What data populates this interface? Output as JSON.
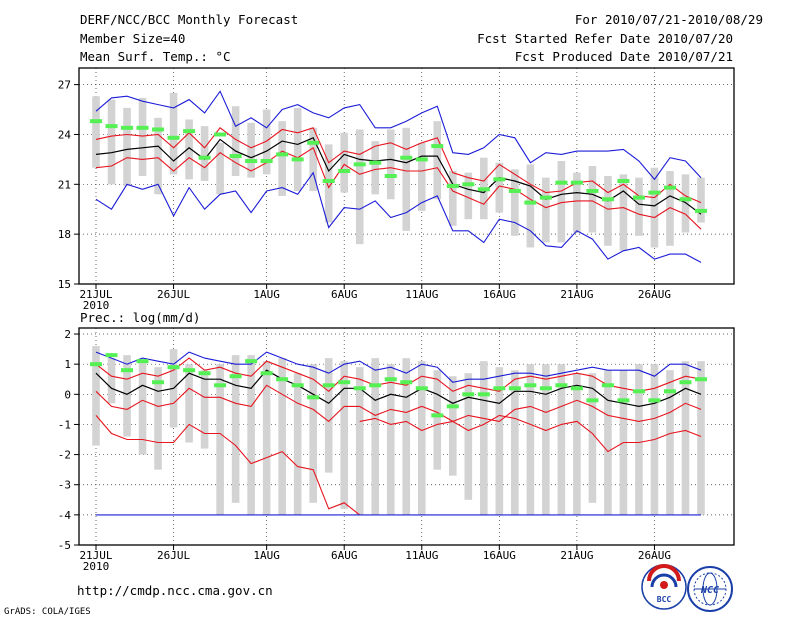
{
  "header": {
    "left_title": "DERF/NCC/BCC Monthly Forecast",
    "left_member": "Member Size=40",
    "left_variable": "Mean Surf. Temp.: °C",
    "right_range": "For 2010/07/21-2010/08/29",
    "right_started": "Fcst Started Refer Date 2010/07/20",
    "right_produced": "Fcst Produced Date 2010/07/21"
  },
  "footer": {
    "url": "http://cmdp.ncc.cma.gov.cn",
    "credit": "GrADS: COLA/IGES",
    "logo1_text": "BCC",
    "logo2_text": "NCC"
  },
  "colors": {
    "box": "#d3d3d3",
    "mean": "#000000",
    "spread": "#e8141e",
    "extreme": "#1c1cd8",
    "observed": "#54f054",
    "grid": "#333333"
  },
  "chart_data": [
    {
      "type": "line",
      "title": "",
      "ylabel": "",
      "xlabel": "",
      "ylim": [
        15,
        28
      ],
      "yticks": [
        15,
        18,
        21,
        24,
        27
      ],
      "xtick_labels": [
        "21JUL",
        "26JUL",
        "1AUG",
        "6AUG",
        "11AUG",
        "16AUG",
        "21AUG",
        "26AUG"
      ],
      "xtick_days": [
        0,
        5,
        11,
        16,
        21,
        26,
        31,
        36
      ],
      "year_label": "2010",
      "days": 40,
      "series": [
        {
          "name": "mean",
          "values": [
            22.8,
            22.9,
            23.1,
            23.2,
            23.3,
            22.4,
            23.2,
            22.5,
            23.7,
            23.0,
            22.6,
            23.0,
            23.6,
            23.4,
            23.8,
            21.8,
            22.8,
            22.5,
            22.4,
            22.5,
            22.3,
            22.7,
            22.7,
            21.0,
            20.7,
            20.5,
            21.4,
            21.2,
            20.9,
            20.1,
            20.4,
            20.5,
            20.4,
            20.0,
            20.6,
            19.8,
            19.7,
            20.3,
            19.9,
            19.2
          ]
        },
        {
          "name": "upper",
          "values": [
            23.7,
            23.9,
            24.0,
            23.9,
            24.0,
            23.2,
            24.1,
            23.2,
            24.4,
            23.7,
            23.2,
            23.6,
            24.3,
            24.1,
            24.4,
            22.3,
            23.0,
            22.8,
            23.3,
            23.5,
            23.1,
            23.5,
            23.8,
            21.7,
            21.4,
            21.2,
            22.2,
            21.6,
            21.0,
            20.5,
            20.6,
            21.1,
            21.2,
            20.5,
            21.0,
            20.3,
            20.2,
            21.0,
            20.3,
            19.9
          ]
        },
        {
          "name": "lower",
          "values": [
            22.0,
            22.1,
            22.6,
            22.5,
            22.6,
            21.8,
            22.6,
            22.0,
            22.9,
            22.3,
            21.8,
            22.3,
            23.0,
            22.6,
            23.2,
            20.8,
            22.2,
            21.6,
            21.9,
            22.0,
            21.8,
            21.8,
            22.0,
            20.6,
            20.2,
            19.8,
            20.9,
            20.7,
            20.1,
            19.6,
            19.9,
            20.0,
            20.0,
            19.5,
            19.6,
            19.2,
            19.0,
            19.6,
            19.2,
            18.3
          ]
        },
        {
          "name": "max",
          "values": [
            25.4,
            26.2,
            26.3,
            26.0,
            25.8,
            25.6,
            26.1,
            25.3,
            26.6,
            24.5,
            25.0,
            24.4,
            25.5,
            25.8,
            25.3,
            25.0,
            25.6,
            25.8,
            24.4,
            24.4,
            24.8,
            25.3,
            25.7,
            22.9,
            22.8,
            23.2,
            24.0,
            23.8,
            22.3,
            22.9,
            22.8,
            23.0,
            23.0,
            23.0,
            23.1,
            22.4,
            21.3,
            22.6,
            22.4,
            21.4
          ]
        },
        {
          "name": "min",
          "values": [
            20.1,
            19.5,
            21.0,
            20.7,
            21.0,
            19.1,
            20.8,
            19.5,
            20.4,
            20.6,
            19.3,
            20.6,
            20.8,
            20.4,
            21.7,
            18.4,
            19.6,
            19.5,
            20.0,
            19.0,
            19.3,
            19.9,
            20.3,
            18.2,
            18.2,
            17.5,
            18.9,
            18.7,
            18.2,
            17.3,
            17.2,
            18.2,
            17.7,
            16.5,
            17.0,
            17.2,
            16.5,
            16.8,
            16.8,
            16.3
          ]
        },
        {
          "name": "box_top",
          "values": [
            26.3,
            26.1,
            25.6,
            26.2,
            25.0,
            26.5,
            24.9,
            24.5,
            23.5,
            25.7,
            24.7,
            25.5,
            24.8,
            25.6,
            24.4,
            23.4,
            24.1,
            24.3,
            23.6,
            24.3,
            24.4,
            23.5,
            24.8,
            21.8,
            21.7,
            22.6,
            22.3,
            21.9,
            22.2,
            21.4,
            22.4,
            21.7,
            22.1,
            21.5,
            21.6,
            21.4,
            22.0,
            21.8,
            21.6,
            21.4
          ]
        },
        {
          "name": "box_bottom",
          "values": [
            22.0,
            21.0,
            20.9,
            21.5,
            20.4,
            21.6,
            21.3,
            21.2,
            20.4,
            21.5,
            21.4,
            21.6,
            20.3,
            20.6,
            20.6,
            18.7,
            20.5,
            17.4,
            20.4,
            20.1,
            18.2,
            19.4,
            20.1,
            18.5,
            18.9,
            18.9,
            19.3,
            17.9,
            17.2,
            17.5,
            17.5,
            18.1,
            18.1,
            17.3,
            17.0,
            17.9,
            17.2,
            17.3,
            18.1,
            18.7
          ]
        },
        {
          "name": "observed",
          "values": [
            24.8,
            24.5,
            24.4,
            24.4,
            24.3,
            23.8,
            24.2,
            22.6,
            24.0,
            22.7,
            22.4,
            22.4,
            22.8,
            22.5,
            23.5,
            21.2,
            21.8,
            22.2,
            22.3,
            21.5,
            22.6,
            22.5,
            23.3,
            20.9,
            21.0,
            20.7,
            21.3,
            20.6,
            19.9,
            20.2,
            21.1,
            21.1,
            20.6,
            20.1,
            21.2,
            20.2,
            20.5,
            20.8,
            20.1,
            19.4
          ]
        }
      ]
    },
    {
      "type": "line",
      "title": "Prec.: log(mm/d)",
      "ylabel": "",
      "xlabel": "",
      "ylim": [
        -5,
        2.2
      ],
      "yticks": [
        -5,
        -4,
        -3,
        -2,
        -1,
        0,
        1,
        2
      ],
      "xtick_labels": [
        "21JUL",
        "26JUL",
        "1AUG",
        "6AUG",
        "11AUG",
        "16AUG",
        "21AUG",
        "26AUG"
      ],
      "xtick_days": [
        0,
        5,
        11,
        16,
        21,
        26,
        31,
        36
      ],
      "year_label": "2010",
      "days": 40,
      "series": [
        {
          "name": "mean",
          "values": [
            0.7,
            0.2,
            0.0,
            0.3,
            0.1,
            0.2,
            0.7,
            0.5,
            0.5,
            0.3,
            0.2,
            0.8,
            0.5,
            0.3,
            0.0,
            -0.3,
            0.2,
            0.2,
            -0.2,
            0.0,
            -0.1,
            0.2,
            0.0,
            -0.3,
            -0.1,
            -0.2,
            -0.3,
            0.1,
            0.1,
            0.0,
            0.2,
            0.3,
            0.2,
            -0.2,
            -0.3,
            -0.4,
            -0.3,
            -0.1,
            0.2,
            0.0
          ]
        },
        {
          "name": "upper",
          "values": [
            1.0,
            0.6,
            0.5,
            0.7,
            0.6,
            0.8,
            1.2,
            0.8,
            0.9,
            0.7,
            0.6,
            1.1,
            0.9,
            0.7,
            0.5,
            0.1,
            0.6,
            0.5,
            0.3,
            0.4,
            0.3,
            0.6,
            0.5,
            0.1,
            0.3,
            0.2,
            0.1,
            0.5,
            0.6,
            0.5,
            0.6,
            0.7,
            0.6,
            0.3,
            0.2,
            0.1,
            0.2,
            0.4,
            0.6,
            0.5
          ]
        },
        {
          "name": "lower",
          "values": [
            0.1,
            -0.4,
            -0.5,
            -0.2,
            -0.4,
            -0.3,
            0.2,
            -0.1,
            -0.1,
            -0.3,
            -0.4,
            0.3,
            0.0,
            -0.3,
            -0.5,
            -0.9,
            -0.4,
            -0.4,
            -0.7,
            -0.5,
            -0.6,
            -0.4,
            -0.6,
            -0.9,
            -0.7,
            -0.8,
            -0.9,
            -0.5,
            -0.4,
            -0.6,
            -0.4,
            -0.2,
            -0.4,
            -0.7,
            -0.8,
            -0.9,
            -0.8,
            -0.6,
            -0.3,
            -0.5
          ]
        },
        {
          "name": "max",
          "values": [
            1.4,
            1.2,
            1.0,
            1.2,
            1.1,
            1.0,
            1.4,
            1.2,
            1.1,
            1.0,
            1.0,
            1.4,
            1.2,
            1.0,
            0.9,
            0.7,
            1.0,
            1.1,
            0.8,
            0.9,
            0.7,
            1.0,
            0.9,
            0.4,
            0.5,
            0.5,
            0.6,
            0.7,
            0.7,
            0.6,
            0.7,
            0.8,
            0.9,
            0.8,
            0.8,
            0.8,
            0.6,
            1.0,
            1.0,
            0.8
          ]
        },
        {
          "name": "min",
          "values": [
            -0.7,
            -1.3,
            -1.5,
            -1.5,
            -1.6,
            -1.6,
            -1.0,
            -1.3,
            -1.3,
            -1.7,
            -2.3,
            -2.1,
            -1.9,
            -2.4,
            -2.5,
            -3.8,
            -3.6,
            -4.0,
            null,
            null,
            null,
            null,
            null,
            null,
            null,
            null,
            null,
            null,
            null,
            null,
            null,
            null,
            null,
            null,
            null,
            null,
            null,
            null,
            null,
            null
          ]
        },
        {
          "name": "floor",
          "values": [
            -4.0,
            -4.0,
            -4.0,
            -4.0,
            -4.0,
            -4.0,
            -4.0,
            -4.0,
            -4.0,
            -4.0,
            -4.0,
            -4.0,
            -4.0,
            -4.0,
            -4.0,
            -4.0,
            -4.0,
            -4.0,
            -4.0,
            -4.0,
            -4.0,
            -4.0,
            -4.0,
            -4.0,
            -4.0,
            -4.0,
            -4.0,
            -4.0,
            -4.0,
            -4.0,
            -4.0,
            -4.0,
            -4.0,
            -4.0,
            -4.0,
            -4.0,
            -4.0,
            -4.0,
            -4.0,
            -4.0
          ]
        },
        {
          "name": "red_low",
          "values": [
            null,
            null,
            null,
            null,
            null,
            null,
            null,
            null,
            null,
            null,
            null,
            null,
            null,
            null,
            null,
            null,
            null,
            -0.9,
            -0.8,
            -1.0,
            -0.9,
            -1.2,
            -1.0,
            -0.9,
            -1.2,
            -1.0,
            -0.7,
            -0.8,
            -1.0,
            -1.2,
            -1.0,
            -0.9,
            -1.3,
            -1.9,
            -1.6,
            -1.6,
            -1.5,
            -1.3,
            -1.2,
            -1.4
          ]
        },
        {
          "name": "box_top",
          "values": [
            1.6,
            1.2,
            1.3,
            1.1,
            0.9,
            1.5,
            1.0,
            0.8,
            1.0,
            1.3,
            1.3,
            1.1,
            1.2,
            0.7,
            1.0,
            1.2,
            1.1,
            0.9,
            1.2,
            1.0,
            1.2,
            1.1,
            0.8,
            0.6,
            0.7,
            1.1,
            0.9,
            0.8,
            1.0,
            1.0,
            1.0,
            0.7,
            0.7,
            0.8,
            0.8,
            1.0,
            1.0,
            0.8,
            1.1,
            1.1
          ]
        },
        {
          "name": "box_bottom",
          "values": [
            -1.7,
            -0.3,
            -1.4,
            -2.0,
            -2.5,
            -1.1,
            -1.6,
            -1.8,
            -4.0,
            -3.6,
            -4.0,
            -4.0,
            -4.0,
            -4.0,
            -3.6,
            -2.6,
            -3.8,
            -4.0,
            -4.0,
            -4.0,
            -4.0,
            -4.0,
            -2.5,
            -2.7,
            -3.5,
            -4.0,
            -4.0,
            -4.0,
            -4.0,
            -4.0,
            -4.0,
            -4.0,
            -3.6,
            -4.0,
            -4.0,
            -4.0,
            -4.0,
            -4.0,
            -4.0,
            -4.0
          ]
        },
        {
          "name": "observed",
          "values": [
            1.0,
            1.3,
            0.8,
            1.1,
            0.4,
            0.9,
            0.8,
            0.7,
            0.3,
            0.6,
            1.1,
            0.7,
            0.5,
            0.3,
            -0.1,
            0.3,
            0.4,
            0.2,
            0.3,
            0.5,
            0.4,
            0.2,
            -0.7,
            -0.4,
            0.0,
            0.0,
            0.2,
            0.2,
            0.3,
            0.2,
            0.3,
            0.2,
            -0.2,
            0.3,
            -0.2,
            0.1,
            -0.2,
            0.1,
            0.4,
            0.5
          ]
        }
      ]
    }
  ]
}
